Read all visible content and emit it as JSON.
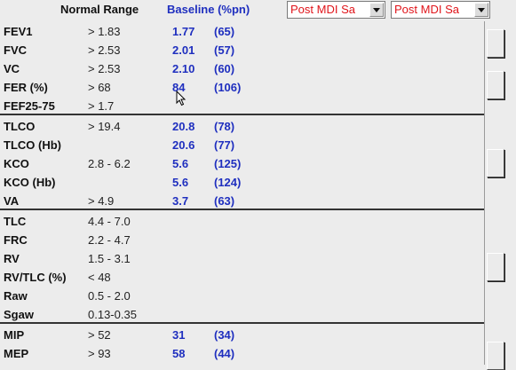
{
  "header": {
    "normal_range": "Normal Range",
    "baseline": "Baseline (%pn)"
  },
  "dropdowns": [
    {
      "value": "Post MDI Sa"
    },
    {
      "value": "Post MDI Sa"
    }
  ],
  "groups": [
    {
      "rows": [
        {
          "label": "FEV1",
          "normal": "> 1.83",
          "baseline": "1.77",
          "pct": "(65)"
        },
        {
          "label": "FVC",
          "normal": "> 2.53",
          "baseline": "2.01",
          "pct": "(57)"
        },
        {
          "label": "VC",
          "normal": "> 2.53",
          "baseline": "2.10",
          "pct": "(60)"
        },
        {
          "label": "FER  (%)",
          "normal": "> 68",
          "baseline": "84",
          "pct": "(106)"
        },
        {
          "label": "FEF25-75",
          "normal": "> 1.7",
          "baseline": "",
          "pct": ""
        }
      ]
    },
    {
      "rows": [
        {
          "label": "TLCO",
          "normal": "> 19.4",
          "baseline": "20.8",
          "pct": "(78)"
        },
        {
          "label": "TLCO (Hb)",
          "normal": "",
          "baseline": "20.6",
          "pct": "(77)"
        },
        {
          "label": "KCO",
          "normal": "2.8 - 6.2",
          "baseline": "5.6",
          "pct": "(125)"
        },
        {
          "label": "KCO (Hb)",
          "normal": "",
          "baseline": "5.6",
          "pct": "(124)"
        },
        {
          "label": "VA",
          "normal": "> 4.9",
          "baseline": "3.7",
          "pct": "(63)"
        }
      ]
    },
    {
      "rows": [
        {
          "label": "TLC",
          "normal": "4.4 - 7.0",
          "baseline": "",
          "pct": ""
        },
        {
          "label": "FRC",
          "normal": "2.2 - 4.7",
          "baseline": "",
          "pct": ""
        },
        {
          "label": "RV",
          "normal": "1.5 - 3.1",
          "baseline": "",
          "pct": ""
        },
        {
          "label": "RV/TLC (%)",
          "normal": "< 48",
          "baseline": "",
          "pct": ""
        },
        {
          "label": "Raw",
          "normal": "0.5 - 2.0",
          "baseline": "",
          "pct": ""
        },
        {
          "label": "Sgaw",
          "normal": "0.13-0.35",
          "baseline": "",
          "pct": ""
        }
      ]
    },
    {
      "rows": [
        {
          "label": "MIP",
          "normal": "> 52",
          "baseline": "31",
          "pct": "(34)"
        },
        {
          "label": "MEP",
          "normal": "> 93",
          "baseline": "58",
          "pct": "(44)"
        }
      ]
    }
  ]
}
